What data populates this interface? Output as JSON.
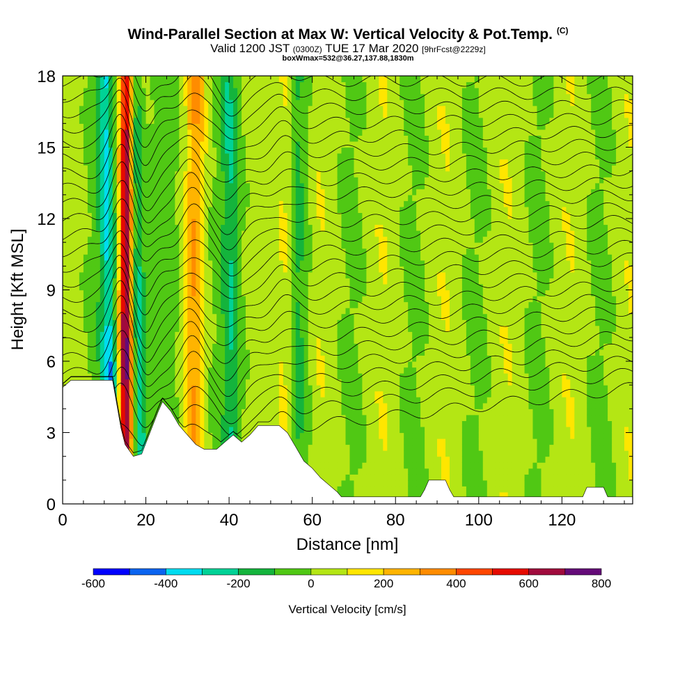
{
  "title": {
    "main": "Wind-Parallel Section at Max W: Vertical Velocity & Pot.Temp.",
    "copyright": "(C)",
    "valid_prefix": "Valid 1200 JST",
    "valid_utc": "(0300Z)",
    "valid_date": "TUE 17 Mar 2020",
    "forecast": "[9hrFcst@2229z]",
    "box": "boxWmax=532@36.27,137.88,1830m"
  },
  "chart_data": {
    "type": "heatmap",
    "xlabel": "Distance [nm]",
    "ylabel": "Height [Kft MSL]",
    "xlim": [
      0,
      137
    ],
    "ylim": [
      0,
      18
    ],
    "x_ticks": [
      0,
      20,
      40,
      60,
      80,
      100,
      120
    ],
    "y_ticks": [
      0,
      3,
      6,
      9,
      12,
      15,
      18
    ],
    "colorbar": {
      "label": "Vertical Velocity [cm/s]",
      "boundaries": [
        -600,
        -500,
        -400,
        -300,
        -200,
        -100,
        0,
        100,
        200,
        300,
        400,
        500,
        600,
        700,
        800
      ],
      "tick_labels": [
        -600,
        -400,
        -200,
        0,
        200,
        400,
        600,
        800
      ],
      "colors": [
        "#0000ff",
        "#0a64f0",
        "#00dcf0",
        "#00d296",
        "#14b43c",
        "#50c814",
        "#b4e614",
        "#ffe600",
        "#ffb400",
        "#ff8c00",
        "#ff4600",
        "#e60a00",
        "#a00a3c",
        "#640a78"
      ]
    },
    "terrain_kft": [
      [
        0,
        4.9
      ],
      [
        2,
        5.2
      ],
      [
        12,
        5.2
      ],
      [
        13,
        4.2
      ],
      [
        14,
        3.2
      ],
      [
        15,
        2.5
      ],
      [
        17,
        2.0
      ],
      [
        19,
        2.1
      ],
      [
        21,
        3.0
      ],
      [
        23,
        3.9
      ],
      [
        24,
        4.3
      ],
      [
        26,
        3.9
      ],
      [
        28,
        3.3
      ],
      [
        30,
        2.9
      ],
      [
        32,
        2.5
      ],
      [
        34,
        2.3
      ],
      [
        37,
        2.3
      ],
      [
        39,
        2.6
      ],
      [
        41,
        2.9
      ],
      [
        43,
        2.6
      ],
      [
        45,
        2.9
      ],
      [
        47,
        3.3
      ],
      [
        52,
        3.3
      ],
      [
        54,
        3.0
      ],
      [
        56,
        2.4
      ],
      [
        58,
        1.8
      ],
      [
        60,
        1.5
      ],
      [
        62,
        1.1
      ],
      [
        64,
        0.8
      ],
      [
        66,
        0.5
      ],
      [
        67,
        0.3
      ],
      [
        86,
        0.3
      ],
      [
        87,
        0.6
      ],
      [
        88,
        1.0
      ],
      [
        92,
        1.0
      ],
      [
        93,
        0.6
      ],
      [
        94,
        0.3
      ],
      [
        125,
        0.3
      ],
      [
        126,
        0.7
      ],
      [
        130,
        0.7
      ],
      [
        131,
        0.3
      ],
      [
        137,
        0.3
      ]
    ],
    "updraft_bands": [
      {
        "x_bottom": 15.0,
        "x_top": 15.5,
        "w_cm_s": 700
      },
      {
        "x_bottom": 31.0,
        "x_top": 32.0,
        "w_cm_s": 250
      },
      {
        "x_bottom": 53.0,
        "x_top": 53.5,
        "w_cm_s": 150
      }
    ],
    "downdraft_bands": [
      {
        "x_bottom": 12.0,
        "x_top": 10.0,
        "w_cm_s": -600
      },
      {
        "x_bottom": 19.0,
        "x_top": 17.0,
        "w_cm_s": -300
      },
      {
        "x_bottom": 41.0,
        "x_top": 40.0,
        "w_cm_s": -150
      },
      {
        "x_bottom": 57.0,
        "x_top": 56.5,
        "w_cm_s": -100
      }
    ],
    "theta_contours_kft": [
      3.3,
      4.0,
      4.6,
      5.2,
      5.8,
      6.4,
      7.0,
      7.6,
      8.2,
      8.8,
      9.4,
      10.0,
      10.6,
      11.2,
      11.8,
      12.4,
      13.0,
      13.6,
      14.2,
      14.8,
      15.4,
      16.0,
      16.6,
      17.2,
      17.8
    ]
  }
}
